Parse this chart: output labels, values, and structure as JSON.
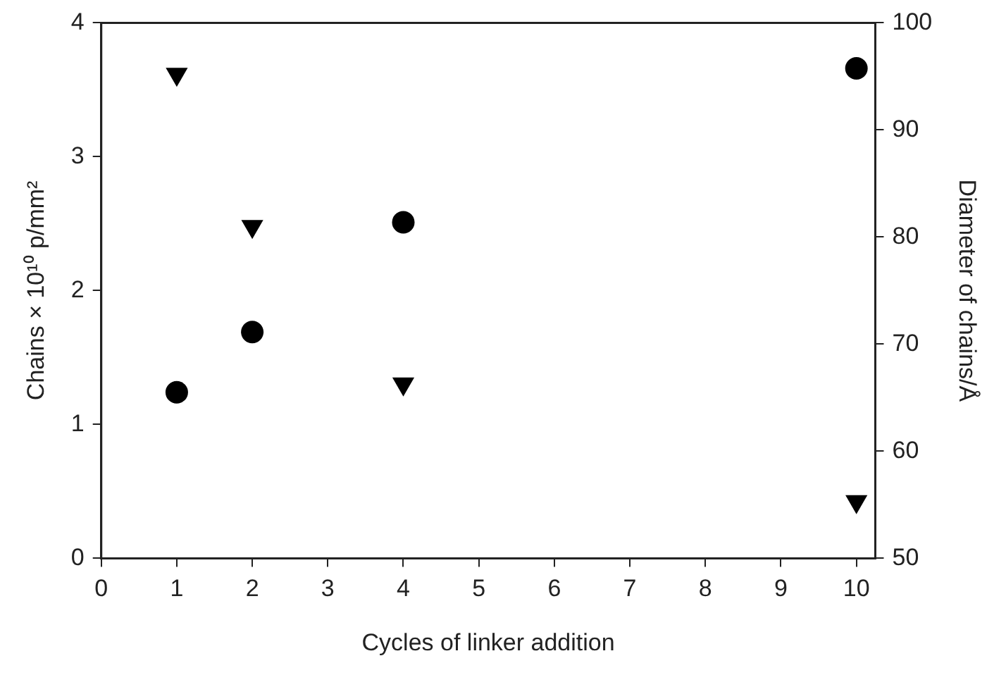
{
  "chart_data": {
    "type": "scatter",
    "xlabel": "Cycles of linker addition",
    "ylabel": "Chains × 10¹⁰ p/mm²",
    "y2label": "Diameter of chains/Å",
    "xlim": [
      0,
      10.25
    ],
    "xticks": [
      0,
      1,
      2,
      3,
      4,
      5,
      6,
      7,
      8,
      9,
      10
    ],
    "ylim": [
      0,
      4
    ],
    "yticks": [
      0,
      1,
      2,
      3,
      4
    ],
    "y2lim": [
      50,
      100
    ],
    "y2ticks": [
      50,
      60,
      70,
      80,
      90,
      100
    ],
    "grid": false,
    "legend": false,
    "series": [
      {
        "color": "#000000",
        "marker": "circle",
        "x": [
          1,
          2,
          4,
          10
        ],
        "values": [
          1.24,
          1.69,
          2.51,
          3.66
        ]
      },
      {
        "color": "#000000",
        "marker": "triangle",
        "axis": "y2",
        "x": [
          1,
          2,
          4,
          10
        ],
        "values": [
          95.2,
          81.0,
          66.3,
          55.3
        ]
      }
    ]
  }
}
